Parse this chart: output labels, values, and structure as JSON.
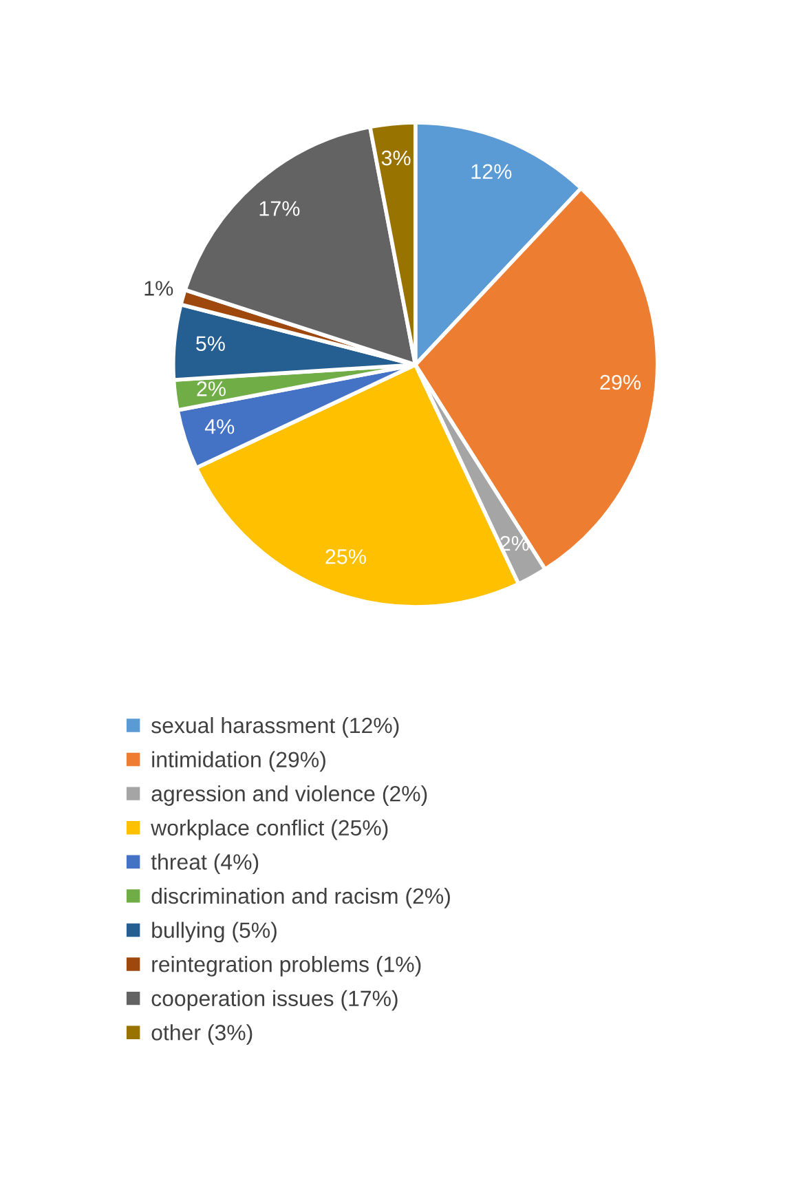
{
  "chart_data": {
    "type": "pie",
    "categories": [
      "sexual harassment (12%)",
      "intimidation (29%)",
      "agression and violence (2%)",
      "workplace conflict (25%)",
      "threat (4%)",
      "discrimination and racism (2%)",
      "bullying (5%)",
      "reintegration problems (1%)",
      "cooperation issues (17%)",
      "other (3%)"
    ],
    "values": [
      12,
      29,
      2,
      25,
      4,
      2,
      5,
      1,
      17,
      3
    ],
    "colors": [
      "#5b9bd5",
      "#ed7d31",
      "#a5a5a5",
      "#ffc000",
      "#4472c4",
      "#70ad47",
      "#255e91",
      "#9e480e",
      "#636363",
      "#997300"
    ],
    "value_labels": [
      "12%",
      "29%",
      "2%",
      "25%",
      "4%",
      "2%",
      "5%",
      "1%",
      "17%",
      "3%"
    ],
    "legend": "bottom"
  }
}
